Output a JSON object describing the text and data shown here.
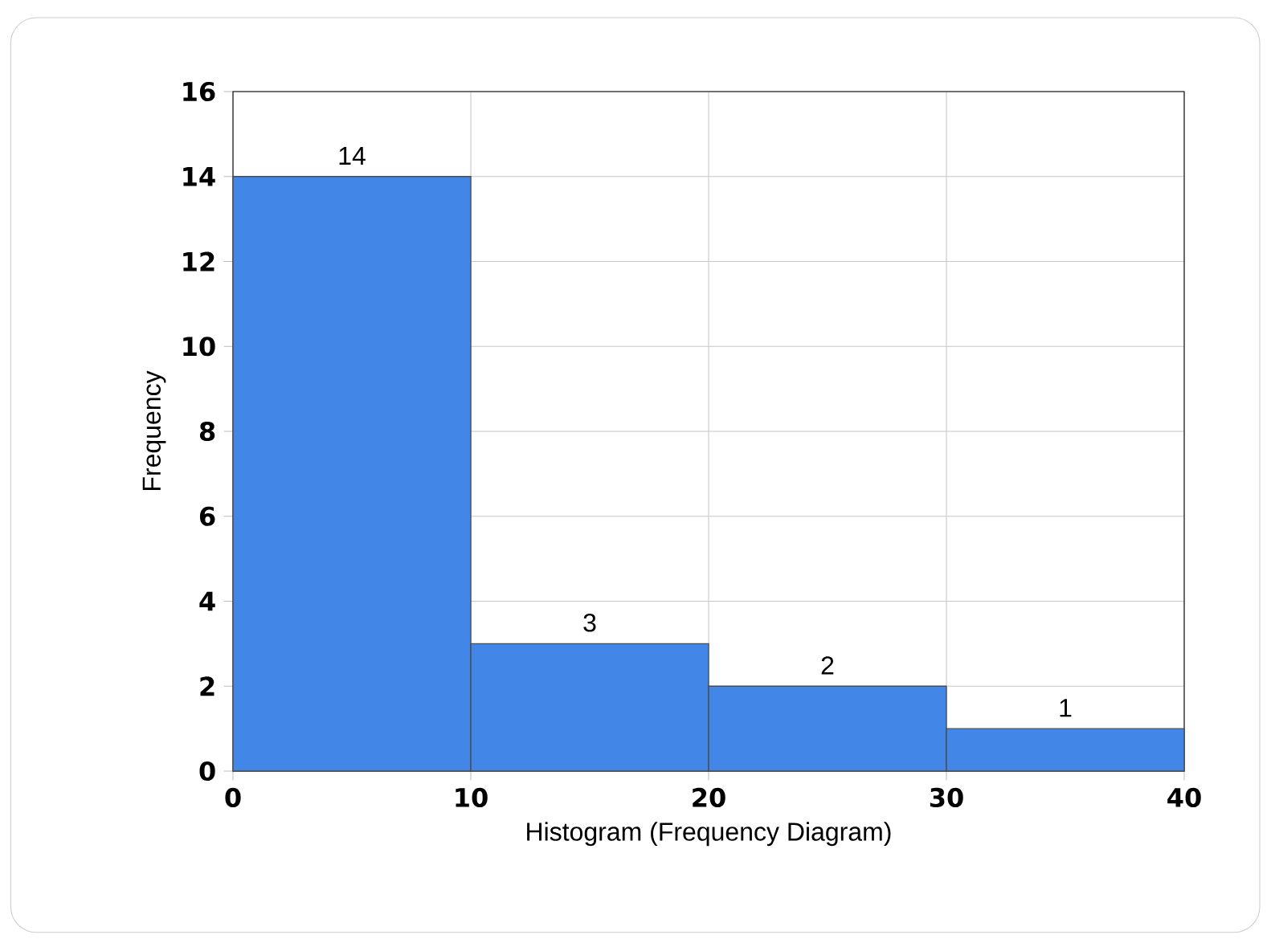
{
  "chart_data": {
    "type": "histogram",
    "xlabel": "Histogram (Frequency Diagram)",
    "ylabel": "Frequency",
    "bins": [
      0,
      10,
      20,
      30,
      40
    ],
    "values": [
      14,
      3,
      2,
      1
    ],
    "color": "#4287e8",
    "xlim": [
      0,
      40
    ],
    "ylim": [
      0,
      16
    ],
    "xticks": [
      0,
      10,
      20,
      30,
      40
    ],
    "yticks": [
      0,
      2,
      4,
      6,
      8,
      10,
      12,
      14,
      16
    ],
    "grid": true,
    "data_labels": true
  }
}
